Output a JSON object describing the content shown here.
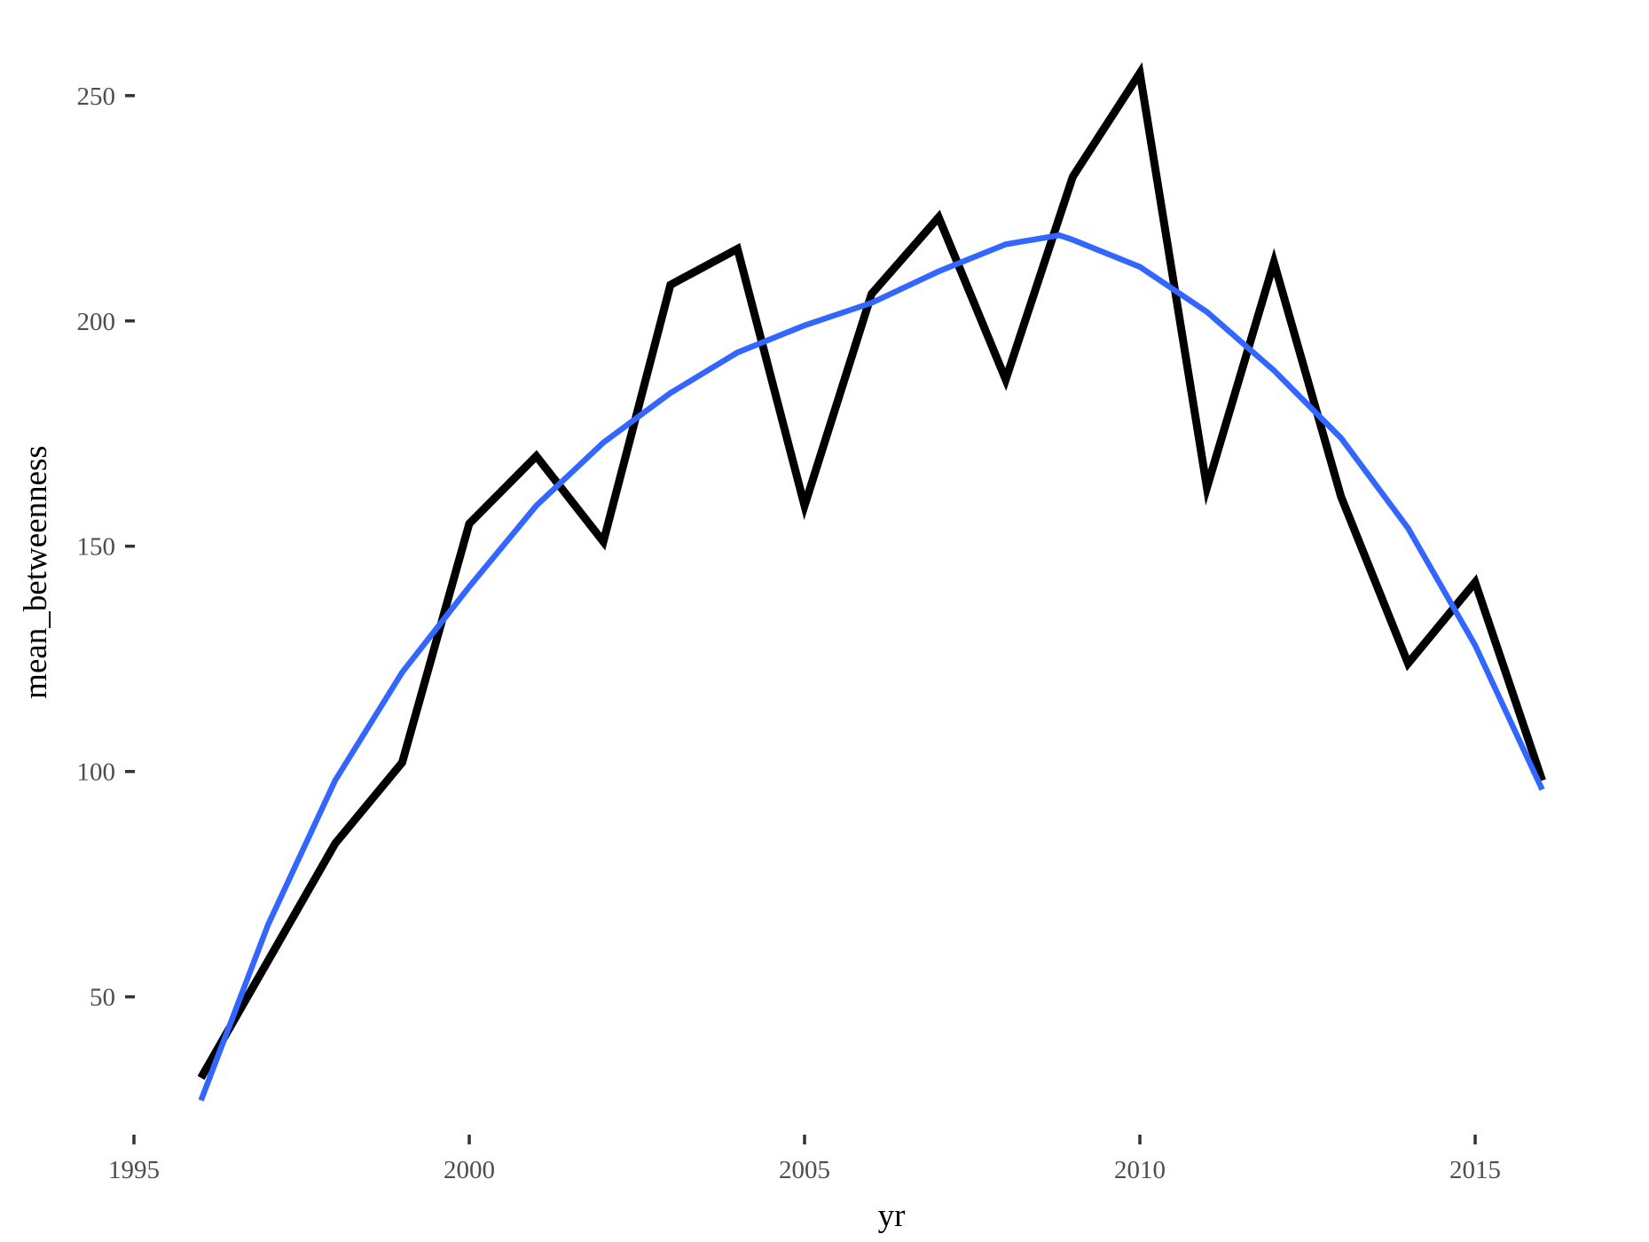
{
  "chart_data": {
    "type": "line",
    "title": "",
    "xlabel": "yr",
    "ylabel": "mean_betweenness",
    "xlim": [
      1995,
      2016.6
    ],
    "ylim": [
      20,
      260
    ],
    "x_ticks": [
      1995,
      2000,
      2005,
      2010,
      2015
    ],
    "x_tick_labels": [
      "1995",
      "2000",
      "2005",
      "2010",
      "2015"
    ],
    "y_ticks": [
      50,
      100,
      150,
      200,
      250
    ],
    "y_tick_labels": [
      "50",
      "100",
      "150",
      "200",
      "250"
    ],
    "grid": false,
    "legend": "none",
    "x": [
      1996,
      1997,
      1998,
      1999,
      2000,
      2001,
      2002,
      2003,
      2004,
      2005,
      2006,
      2007,
      2008,
      2009,
      2010,
      2011,
      2012,
      2013,
      2014,
      2015,
      2016
    ],
    "series": [
      {
        "color": "#000000",
        "values": [
          32,
          58,
          84,
          102,
          155,
          170,
          151,
          208,
          216,
          159,
          206,
          223,
          187,
          232,
          255,
          163,
          213,
          161,
          124,
          142,
          98
        ]
      },
      {
        "color": "#3366FF",
        "x": [
          1996,
          1997,
          1998,
          1999,
          2000,
          2001,
          2002,
          2003,
          2004,
          2005,
          2006,
          2007,
          2008,
          2008.8,
          2009,
          2010,
          2011,
          2012,
          2013,
          2014,
          2015,
          2016
        ],
        "values": [
          27,
          66,
          98,
          122,
          141,
          159,
          173,
          184,
          193,
          199,
          204,
          211,
          217,
          219,
          218,
          212,
          202,
          189,
          174,
          154,
          128,
          96
        ]
      }
    ]
  }
}
